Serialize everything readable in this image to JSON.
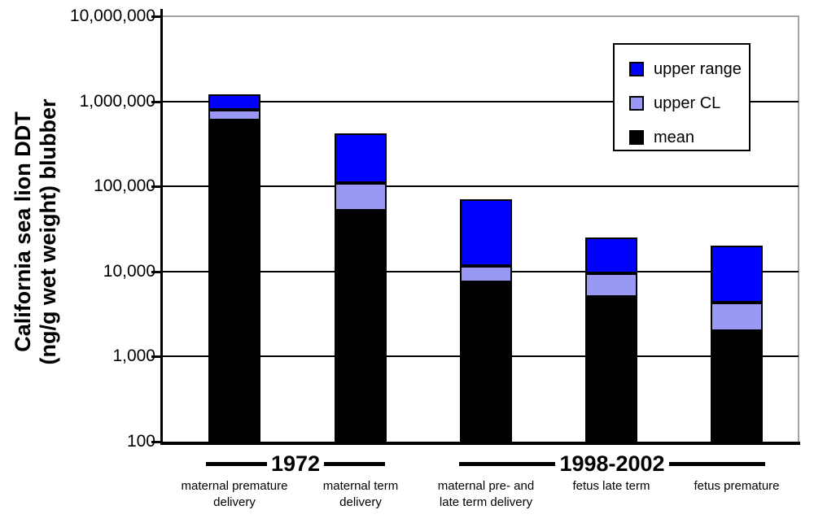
{
  "figure": {
    "background": "#FFFFFF",
    "y_axis": {
      "title_line1": "California sea lion DDT",
      "title_line2": "(ng/g wet weight) blubber",
      "scale": "log10",
      "min": 100,
      "max": 10000000,
      "tick_values": [
        10000000,
        1000000,
        100000,
        10000,
        1000,
        100
      ],
      "tick_labels": [
        "10,000,000",
        "1,000,000",
        "100,000",
        "10,000",
        "1,000",
        "100"
      ]
    },
    "legend": {
      "position": "top-right",
      "items": [
        {
          "label": "upper range",
          "color": "#0000FF"
        },
        {
          "label": "upper CL",
          "color": "#9999F5"
        },
        {
          "label": "mean",
          "color": "#000000"
        }
      ]
    },
    "categories_display": [
      {
        "line1": "maternal premature",
        "line2": "delivery"
      },
      {
        "line1": "maternal term",
        "line2": "delivery"
      },
      {
        "line1": "maternal pre- and",
        "line2": "late term delivery"
      },
      {
        "line1": "fetus late term",
        "line2": ""
      },
      {
        "line1": "fetus premature",
        "line2": ""
      }
    ],
    "groups": [
      {
        "label": "1972",
        "span": [
          0,
          1
        ]
      },
      {
        "label": "1998-2002",
        "span": [
          2,
          4
        ]
      }
    ],
    "colors": {
      "bar_upper_range": "#0000FF",
      "bar_upper_cl": "#9999F5",
      "bar_mean": "#000000",
      "plot_border_gray": "#A3A3A3",
      "gridline": "#000000"
    }
  },
  "chart_data": {
    "type": "bar",
    "subtype": "stacked",
    "y_scale": "log10",
    "title": "",
    "xlabel": "",
    "ylabel": "California sea lion DDT (ng/g wet weight) blubber",
    "ylim": [
      100,
      10000000
    ],
    "grid": "horizontal-decades",
    "legend_position": "top-right",
    "values_are": "absolute_levels_ng_per_g",
    "categories": [
      "maternal premature delivery",
      "maternal term delivery",
      "maternal pre- and late term delivery",
      "fetus late term",
      "fetus premature"
    ],
    "category_groups": [
      {
        "label": "1972",
        "categories": [
          "maternal premature delivery",
          "maternal term delivery"
        ]
      },
      {
        "label": "1998-2002",
        "categories": [
          "maternal pre- and late term delivery",
          "fetus late term",
          "fetus premature"
        ]
      }
    ],
    "series": [
      {
        "name": "mean",
        "color": "#000000",
        "values": [
          600000,
          52000,
          7500,
          5000,
          2000
        ]
      },
      {
        "name": "upper CL",
        "color": "#9999F5",
        "values": [
          800000,
          110000,
          11500,
          9500,
          4300
        ]
      },
      {
        "name": "upper range",
        "color": "#0000FF",
        "values": [
          1200000,
          420000,
          70000,
          25000,
          20000
        ]
      }
    ]
  }
}
